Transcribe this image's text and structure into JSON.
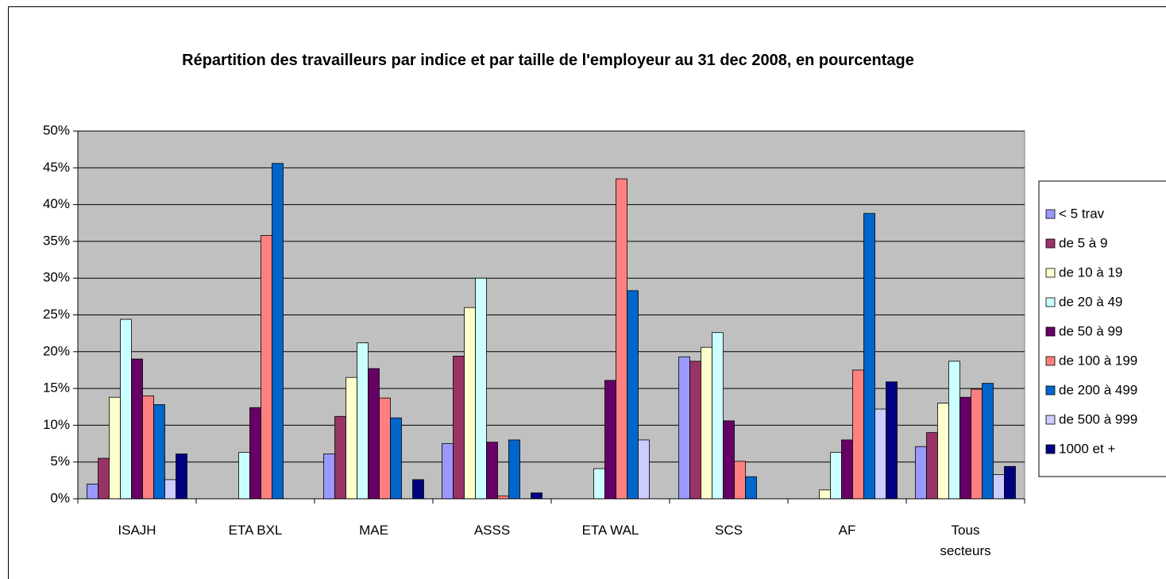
{
  "chart_data": {
    "type": "bar",
    "title": "Répartition des travailleurs par indice et par taille de l'employeur au 31 dec 2008, en pourcentage",
    "categories": [
      "ISAJH",
      "ETA BXL",
      "MAE",
      "ASSS",
      "ETA WAL",
      "SCS",
      "AF",
      "Tous secteurs"
    ],
    "series": [
      {
        "name": "< 5 trav",
        "color": "#9999ff",
        "values": [
          2,
          0,
          6.1,
          7.5,
          0,
          19.3,
          0,
          7.1
        ]
      },
      {
        "name": "de 5 à 9",
        "color": "#993366",
        "values": [
          5.5,
          0,
          11.2,
          19.4,
          0,
          18.7,
          0,
          9
        ]
      },
      {
        "name": "de 10 à 19",
        "color": "#ffffcc",
        "values": [
          13.8,
          0,
          16.5,
          26,
          0,
          20.6,
          1.2,
          13
        ]
      },
      {
        "name": "de 20 à 49",
        "color": "#ccffff",
        "values": [
          24.4,
          6.3,
          21.2,
          30,
          4.1,
          22.6,
          6.3,
          18.7
        ]
      },
      {
        "name": "de 50 à 99",
        "color": "#660066",
        "values": [
          19,
          12.4,
          17.7,
          7.7,
          16.1,
          10.6,
          8,
          13.8
        ]
      },
      {
        "name": "de 100 à 199",
        "color": "#ff8080",
        "values": [
          14,
          35.8,
          13.7,
          0.4,
          43.5,
          5.1,
          17.5,
          14.9
        ]
      },
      {
        "name": "de 200 à 499",
        "color": "#0066cc",
        "values": [
          12.8,
          45.6,
          11,
          8,
          28.3,
          3,
          38.8,
          15.7
        ]
      },
      {
        "name": "de 500 à 999",
        "color": "#ccccff",
        "values": [
          2.6,
          0,
          0,
          0,
          8,
          0,
          12.2,
          3.3
        ]
      },
      {
        "name": "1000 et +",
        "color": "#000080",
        "values": [
          6.1,
          0,
          2.6,
          0.8,
          0,
          0,
          15.9,
          4.4
        ]
      }
    ],
    "ylim": [
      0,
      50
    ],
    "yticks": [
      {
        "value": 0,
        "label": "0%"
      },
      {
        "value": 5,
        "label": "5%"
      },
      {
        "value": 10,
        "label": "10%"
      },
      {
        "value": 15,
        "label": "15%"
      },
      {
        "value": 20,
        "label": "20%"
      },
      {
        "value": 25,
        "label": "25%"
      },
      {
        "value": 30,
        "label": "30%"
      },
      {
        "value": 35,
        "label": "35%"
      },
      {
        "value": 40,
        "label": "40%"
      },
      {
        "value": 45,
        "label": "45%"
      },
      {
        "value": 50,
        "label": "50%"
      }
    ],
    "grid": true
  }
}
